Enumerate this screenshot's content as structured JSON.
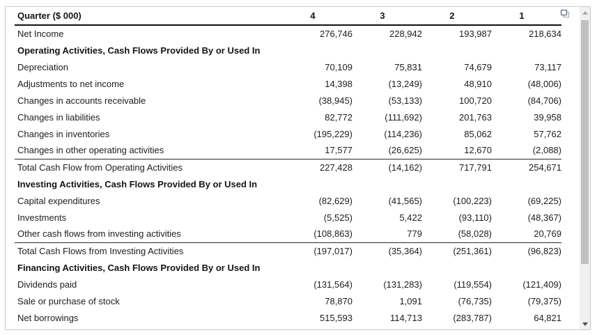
{
  "colors": {
    "panel_border": "#c9c9c9",
    "text": "#1d1d1d",
    "header_underline": "#111111",
    "total_rule": "#2a2a2a",
    "scrollbar_track": "#f1f1f1",
    "scrollbar_thumb": "#c1c1c1"
  },
  "icons": {
    "popout": "popout-icon",
    "scroll_up": "triangle-up-icon",
    "scroll_down": "triangle-down-icon"
  },
  "table": {
    "header": {
      "label": "Quarter ($ 000)",
      "columns": [
        "4",
        "3",
        "2",
        "1"
      ]
    },
    "rows": [
      {
        "type": "data",
        "label": "Net Income",
        "values": [
          "276,746",
          "228,942",
          "193,987",
          "218,634"
        ]
      },
      {
        "type": "section",
        "label": "Operating Activities, Cash Flows Provided By or Used In"
      },
      {
        "type": "data",
        "label": "Depreciation",
        "values": [
          "70,109",
          "75,831",
          "74,679",
          "73,117"
        ]
      },
      {
        "type": "data",
        "label": "Adjustments to net income",
        "values": [
          "14,398",
          "(13,249)",
          "48,910",
          "(48,006)"
        ]
      },
      {
        "type": "data",
        "label": "Changes in accounts receivable",
        "values": [
          "(38,945)",
          "(53,133)",
          "100,720",
          "(84,706)"
        ]
      },
      {
        "type": "data",
        "label": "Changes in liabilities",
        "values": [
          "82,772",
          "(111,692)",
          "201,763",
          "39,958"
        ]
      },
      {
        "type": "data",
        "label": "Changes in inventories",
        "values": [
          "(195,229)",
          "(114,236)",
          "85,062",
          "57,762"
        ]
      },
      {
        "type": "data",
        "label": "Changes in other operating activities",
        "values": [
          "17,577",
          "(26,625)",
          "12,670",
          "(2,088)"
        ]
      },
      {
        "type": "total",
        "label": "Total Cash Flow from Operating Activities",
        "values": [
          "227,428",
          "(14,162)",
          "717,791",
          "254,671"
        ]
      },
      {
        "type": "section",
        "label": "Investing Activities, Cash Flows Provided By or Used In"
      },
      {
        "type": "data",
        "label": "Capital expenditures",
        "values": [
          "(82,629)",
          "(41,565)",
          "(100,223)",
          "(69,225)"
        ]
      },
      {
        "type": "data",
        "label": "Investments",
        "values": [
          "(5,525)",
          "5,422",
          "(93,110)",
          "(48,367)"
        ]
      },
      {
        "type": "data",
        "label": "Other cash flows from investing activities",
        "values": [
          "(108,863)",
          "779",
          "(58,028)",
          "20,769"
        ]
      },
      {
        "type": "total",
        "label": "Total Cash Flows from Investing Activities",
        "values": [
          "(197,017)",
          "(35,364)",
          "(251,361)",
          "(96,823)"
        ]
      },
      {
        "type": "section",
        "label": "Financing Activities, Cash Flows Provided By or Used In"
      },
      {
        "type": "data",
        "label": "Dividends paid",
        "values": [
          "(131,564)",
          "(131,283)",
          "(119,554)",
          "(121,409)"
        ]
      },
      {
        "type": "data",
        "label": "Sale or purchase of stock",
        "values": [
          "78,870",
          "1,091",
          "(76,735)",
          "(79,375)"
        ]
      },
      {
        "type": "data",
        "label": "Net borrowings",
        "values": [
          "515,593",
          "114,713",
          "(283,787)",
          "64,821"
        ]
      }
    ]
  }
}
